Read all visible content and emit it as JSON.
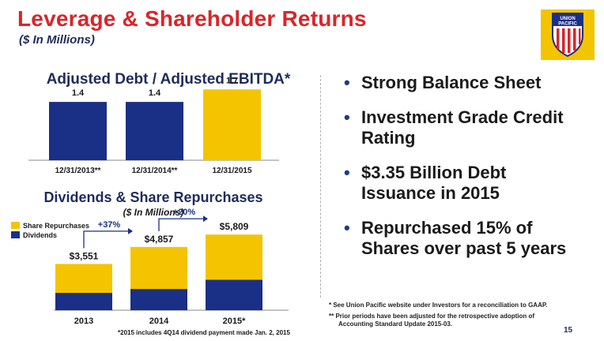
{
  "slide": {
    "title": "Leverage & Shareholder Returns",
    "subtitle": "($ In Millions)",
    "page_number": "15",
    "bullets": [
      {
        "line1": "Strong Balance Sheet",
        "line2": ""
      },
      {
        "line1": "Investment Grade Credit",
        "line2": "Rating"
      },
      {
        "line1": "$3.35 Billion Debt",
        "line2": "Issuance in 2015"
      },
      {
        "line1": "Repurchased 15% of",
        "line2": "Shares over past 5 years"
      }
    ],
    "footnotes": [
      "*  See Union Pacific website under Investors for a reconciliation to GAAP.",
      "** Prior periods have been adjusted for the retrospective adoption of",
      "Accounting Standard Update 2015-03."
    ],
    "logo": {
      "icon": "union-pacific-shield-icon",
      "text_top": "UNION",
      "text_bottom": "PACIFIC"
    }
  },
  "colors": {
    "title": "#d7262a",
    "navy": "#1a2f86",
    "gold": "#f4c400",
    "heading": "#1e2b5c"
  },
  "chart_data": [
    {
      "type": "bar",
      "title": "Adjusted Debt / Adjusted EBITDA*",
      "categories": [
        "12/31/2013**",
        "12/31/2014**",
        "12/31/2015"
      ],
      "values": [
        1.4,
        1.4,
        1.7
      ],
      "data_labels": [
        "1.4",
        "1.4",
        "1.7"
      ],
      "bar_colors": [
        "#1a2f86",
        "#1a2f86",
        "#f4c400"
      ],
      "ylim": [
        0,
        1.8
      ]
    },
    {
      "type": "bar",
      "stacked": true,
      "title": "Dividends & Share Repurchases",
      "subtitle": "($ In Millions)",
      "categories": [
        "2013",
        "2014",
        "2015*"
      ],
      "series": [
        {
          "name": "Dividends",
          "values": [
            1333,
            1632,
            2344
          ],
          "color": "#1a2f86"
        },
        {
          "name": "Share Repurchases",
          "values": [
            2218,
            3225,
            3465
          ],
          "color": "#f4c400"
        }
      ],
      "totals": [
        "$3,551",
        "$4,857",
        "$5,809"
      ],
      "growth_annotations": [
        "+37%",
        "+20%"
      ],
      "legend_position": "top-left",
      "footnote": "*2015 includes 4Q14 dividend payment made Jan. 2, 2015",
      "ylim": [
        0,
        6000
      ]
    }
  ]
}
